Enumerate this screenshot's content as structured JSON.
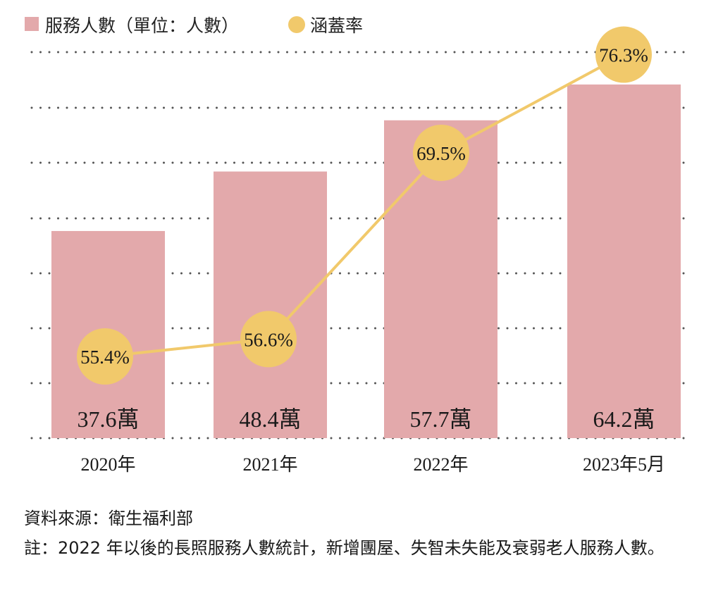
{
  "chart_data": {
    "type": "bar+line",
    "categories": [
      "2020年",
      "2021年",
      "2022年",
      "2023年5月"
    ],
    "series": [
      {
        "name": "服務人數（單位：人數）",
        "type": "bar",
        "color": "#e3a9ab",
        "values": [
          37.6,
          48.4,
          57.7,
          64.2
        ],
        "value_labels": [
          "37.6萬",
          "48.4萬",
          "57.7萬",
          "64.2萬"
        ]
      },
      {
        "name": "涵蓋率",
        "type": "line",
        "color": "#f1c96b",
        "values": [
          55.4,
          56.6,
          69.5,
          76.3
        ],
        "value_labels": [
          "55.4%",
          "56.6%",
          "69.5%",
          "76.3%"
        ]
      }
    ],
    "grid": "dotted-horizontal",
    "legend_position": "top-left"
  },
  "footnotes": {
    "source": "資料來源：衛生福利部",
    "note": "註：2022 年以後的長照服務人數統計，新增團屋、失智未失能及衰弱老人服務人數。"
  }
}
